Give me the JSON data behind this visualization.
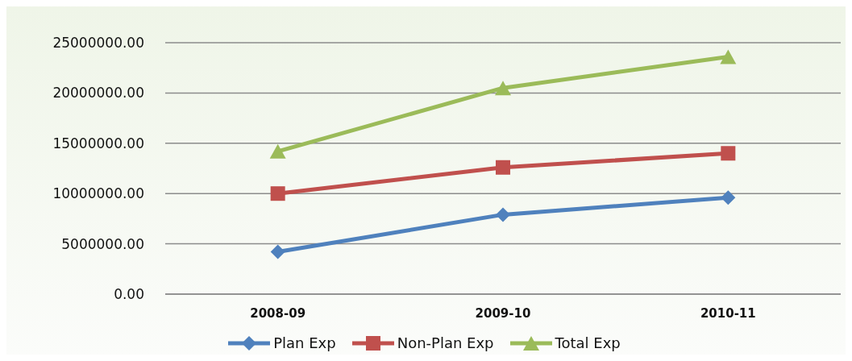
{
  "chart_data": {
    "type": "line",
    "categories": [
      "2008-09",
      "2009-10",
      "2010-11"
    ],
    "series": [
      {
        "name": "Plan Exp",
        "color": "#4f81bd",
        "marker": "diamond",
        "values": [
          4200000,
          7900000,
          9600000
        ]
      },
      {
        "name": "Non-Plan Exp",
        "color": "#c0504d",
        "marker": "square",
        "values": [
          10000000,
          12600000,
          14000000
        ]
      },
      {
        "name": "Total Exp",
        "color": "#9bbb59",
        "marker": "triangle",
        "values": [
          14200000,
          20500000,
          23600000
        ]
      }
    ],
    "ylim": [
      0,
      25000000
    ],
    "yticks": [
      {
        "value": 0,
        "label": "0.00"
      },
      {
        "value": 5000000,
        "label": "5000000.00"
      },
      {
        "value": 10000000,
        "label": "10000000.00"
      },
      {
        "value": 15000000,
        "label": "15000000.00"
      },
      {
        "value": 20000000,
        "label": "20000000.00"
      },
      {
        "value": 25000000,
        "label": "25000000.00"
      }
    ],
    "grid": "y",
    "legend": "bottom",
    "line_style": "solid"
  }
}
